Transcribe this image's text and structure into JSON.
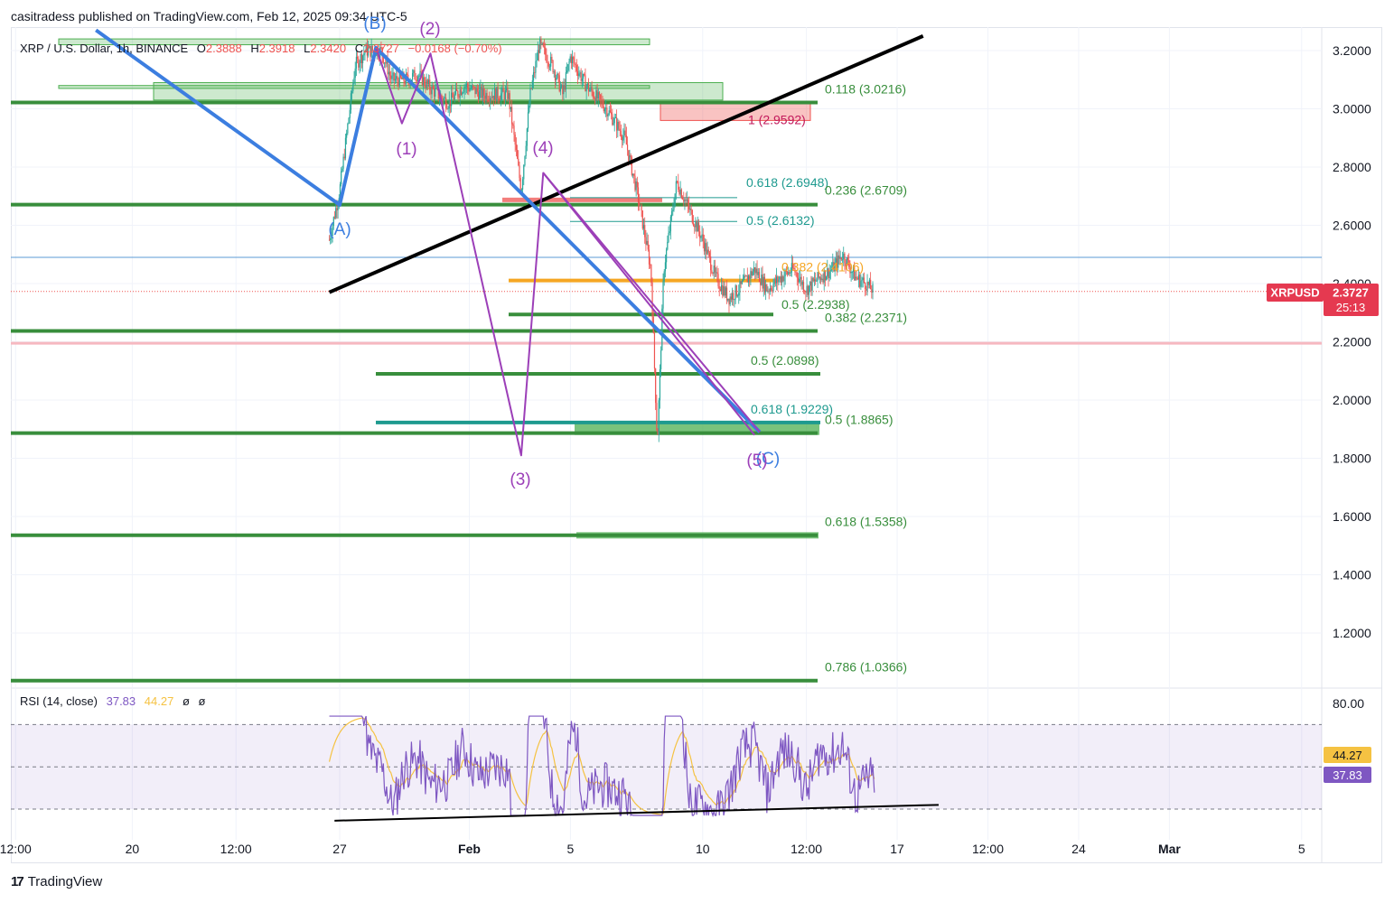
{
  "publisher": "casitradess published on TradingView.com, Feb 12, 2025 09:34 UTC-5",
  "brand": "TradingView",
  "legend": {
    "symbol": "XRP / U.S. Dollar, 1h, BINANCE",
    "ohlc": [
      {
        "k": "O",
        "v": "2.3888"
      },
      {
        "k": "H",
        "v": "2.3918"
      },
      {
        "k": "L",
        "v": "2.3420"
      },
      {
        "k": "C",
        "v": "2.3727"
      }
    ],
    "change": "−0.0168 (−0.70%)"
  },
  "price_badge": {
    "symbol": "XRPUSD",
    "price": "2.3727",
    "countdown": "25:13"
  },
  "rsi_legend": {
    "name": "RSI (14, close)",
    "rsi": "37.83",
    "ma": "44.27",
    "n1": "ø",
    "n2": "ø"
  },
  "rsi_badges": {
    "ma": "44.27",
    "rsi": "37.83"
  },
  "colors": {
    "up": "#26a69a",
    "down": "#ef5350",
    "fib": "#388e3c",
    "orange": "#f5a623",
    "teal": "#1e9a8f",
    "wave_blue": "#3c7ee0",
    "wave_purple": "#9c3fb8",
    "rsi_line": "#7e57c2",
    "rsi_ma": "#f5c242",
    "price_badge": "#e53950"
  },
  "chart_data": [
    {
      "type": "candlestick",
      "title": "",
      "x_axis": {
        "ticks": [
          "12:00",
          "20",
          "12:00",
          "27",
          "Feb",
          "5",
          "10",
          "12:00",
          "17",
          "12:00",
          "24",
          "Mar",
          "5"
        ]
      },
      "y_axis": {
        "range": [
          1.05,
          3.25
        ],
        "ticks": [
          "3.2000",
          "3.0000",
          "2.8000",
          "2.6000",
          "2.4000",
          "2.2000",
          "2.0000",
          "1.8000",
          "1.6000",
          "1.4000",
          "1.2000"
        ]
      },
      "last_price": 2.3727,
      "price_path_days": [
        [
          -0.4,
          2.55
        ],
        [
          0.0,
          2.72
        ],
        [
          0.6,
          3.15
        ],
        [
          1.0,
          3.2
        ],
        [
          1.6,
          3.2
        ],
        [
          2.0,
          3.1
        ],
        [
          2.6,
          3.1
        ],
        [
          3.0,
          3.12
        ],
        [
          3.5,
          3.07
        ],
        [
          4.2,
          3.02
        ],
        [
          4.8,
          3.08
        ],
        [
          5.5,
          3.05
        ],
        [
          6.5,
          3.05
        ],
        [
          7.0,
          2.72
        ],
        [
          7.35,
          3.05
        ],
        [
          7.7,
          3.22
        ],
        [
          8.2,
          3.15
        ],
        [
          8.6,
          3.05
        ],
        [
          8.9,
          3.18
        ],
        [
          9.5,
          3.08
        ],
        [
          10.3,
          3.0
        ],
        [
          11.0,
          2.9
        ],
        [
          11.5,
          2.7
        ],
        [
          12.0,
          2.45
        ],
        [
          12.25,
          1.85
        ],
        [
          12.5,
          2.45
        ],
        [
          13.0,
          2.75
        ],
        [
          13.5,
          2.65
        ],
        [
          14.0,
          2.55
        ],
        [
          14.5,
          2.42
        ],
        [
          15.0,
          2.35
        ],
        [
          15.4,
          2.38
        ],
        [
          16.0,
          2.45
        ],
        [
          16.5,
          2.38
        ],
        [
          17.0,
          2.42
        ],
        [
          17.5,
          2.45
        ],
        [
          18.0,
          2.38
        ],
        [
          18.5,
          2.42
        ],
        [
          19.0,
          2.45
        ],
        [
          19.4,
          2.5
        ],
        [
          19.9,
          2.42
        ],
        [
          20.3,
          2.4
        ],
        [
          20.6,
          2.3727
        ]
      ],
      "levels": [
        {
          "label": "0.118 (3.0216)",
          "price": 3.0216,
          "color": "fib"
        },
        {
          "label": "1 (2.9592)",
          "price": 2.9592,
          "color": "down",
          "zone": true
        },
        {
          "label": "0.618 (2.6948)",
          "price": 2.6948,
          "color": "teal"
        },
        {
          "label": "0.236 (2.6709)",
          "price": 2.6709,
          "color": "fib"
        },
        {
          "label": "0.5 (2.6132)",
          "price": 2.6132,
          "color": "teal"
        },
        {
          "label": "0.382 (2.4106)",
          "price": 2.4106,
          "color": "orange"
        },
        {
          "label": "0.5 (2.2938)",
          "price": 2.2938,
          "color": "fib"
        },
        {
          "label": "0.382 (2.2371)",
          "price": 2.2371,
          "color": "fib"
        },
        {
          "label": "0.5 (2.0898)",
          "price": 2.0898,
          "color": "fib"
        },
        {
          "label": "0.618 (1.9229)",
          "price": 1.9229,
          "color": "teal"
        },
        {
          "label": "0.5 (1.8865)",
          "price": 1.8865,
          "color": "fib"
        },
        {
          "label": "0.618 (1.5358)",
          "price": 1.5358,
          "color": "fib"
        },
        {
          "label": "0.786 (1.0366)",
          "price": 1.0366,
          "color": "fib"
        }
      ],
      "horizontal_lines": [
        {
          "price": 2.49,
          "color": "#5b9bd5"
        },
        {
          "price": 2.195,
          "color": "#f6b8c0"
        }
      ],
      "trendline": {
        "from": [
          -0.4,
          2.37
        ],
        "to": [
          22.5,
          3.25
        ]
      },
      "wave_labels": [
        {
          "text": "(A)",
          "day": 7.0,
          "price": 2.67,
          "color": "wave_blue"
        },
        {
          "text": "(B)",
          "day": 7.8,
          "price": 3.22,
          "color": "wave_blue"
        },
        {
          "text": "(C)",
          "day": 20.6,
          "price": 1.89,
          "color": "wave_blue"
        },
        {
          "text": "(1)",
          "day": 8.5,
          "price": 2.95,
          "color": "wave_purple"
        },
        {
          "text": "(2)",
          "day": 9.2,
          "price": 3.19,
          "color": "wave_purple"
        },
        {
          "text": "(3)",
          "day": 12.3,
          "price": 1.81,
          "color": "wave_purple"
        },
        {
          "text": "(4)",
          "day": 12.6,
          "price": 2.79,
          "color": "wave_purple"
        },
        {
          "text": "(5)",
          "day": 20.5,
          "price": 1.88,
          "color": "wave_purple"
        }
      ]
    },
    {
      "type": "line",
      "title": "",
      "y_axis": {
        "range": [
          22,
          84
        ],
        "ticks": [
          "80.00"
        ],
        "band": [
          30,
          70
        ]
      },
      "series": [
        {
          "name": "RSI",
          "last": 37.83
        },
        {
          "name": "RSI-based MA",
          "last": 44.27
        }
      ],
      "divergence_line": {
        "from_day": 6.8,
        "from_value": 24.5,
        "to_day": 23.1,
        "to_value": 32
      }
    }
  ]
}
